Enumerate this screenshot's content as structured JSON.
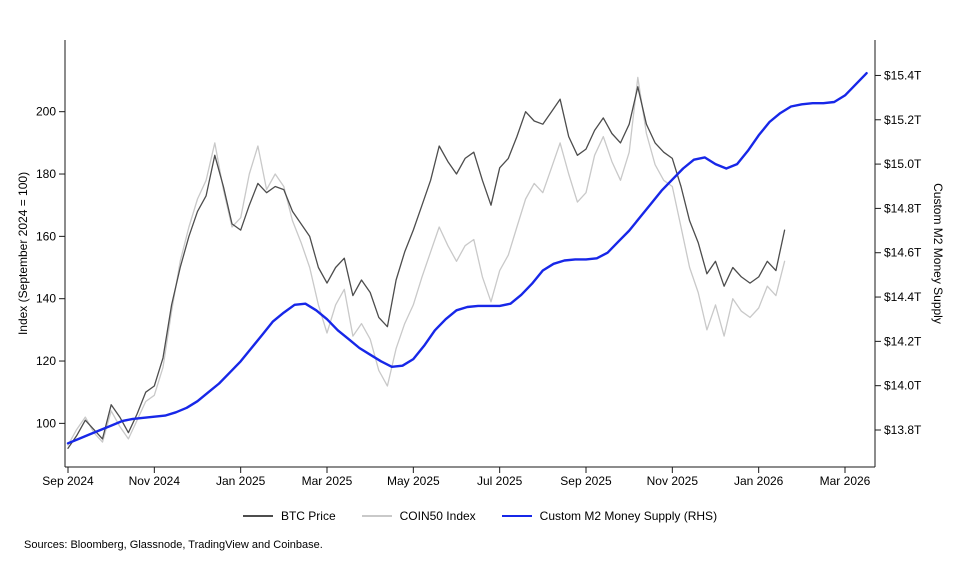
{
  "source_note": "Sources: Bloomberg, Glassnode, TradingView and Coinbase.",
  "colors": {
    "axis": "#1a1a1a",
    "text": "#000000"
  },
  "chart_data": {
    "type": "line",
    "title": "",
    "grid": false,
    "legend_position": "bottom",
    "x_axis": {
      "unit": "months since Sep 2024",
      "tick_positions": [
        0,
        2,
        4,
        6,
        8,
        10,
        12,
        14,
        16,
        18
      ],
      "tick_labels": [
        "Sep 2024",
        "Nov 2024",
        "Jan 2025",
        "Mar 2025",
        "May 2025",
        "Jul 2025",
        "Sep 2025",
        "Nov 2025",
        "Jan 2026",
        "Mar 2026"
      ],
      "range": [
        -0.1,
        18.7
      ]
    },
    "left_axis": {
      "label": "Index (September 2024 = 100)",
      "tick_values": [
        100,
        120,
        140,
        160,
        180,
        200
      ],
      "tick_labels": [
        "100",
        "120",
        "140",
        "160",
        "180",
        "200"
      ],
      "range": [
        86,
        223
      ]
    },
    "right_axis": {
      "label": "Custom M2 Money Supply",
      "tick_values": [
        13.8,
        14.0,
        14.2,
        14.4,
        14.6,
        14.8,
        15.0,
        15.2,
        15.4
      ],
      "tick_labels": [
        "$13.8T",
        "$14.0T",
        "$14.2T",
        "$14.4T",
        "$14.6T",
        "$14.8T",
        "$15.0T",
        "$15.2T",
        "$15.4T"
      ],
      "range": [
        13.633,
        15.56
      ]
    },
    "series": [
      {
        "id": "btc-price",
        "name": "BTC Price",
        "axis": "left",
        "color": "#4d4d4d",
        "width": 1.3,
        "start": 0,
        "step": 0.2,
        "values": [
          92,
          96,
          101,
          98,
          95,
          106,
          102,
          97,
          103,
          110,
          112,
          121,
          138,
          150,
          160,
          168,
          173,
          186,
          176,
          164,
          162,
          170,
          177,
          174,
          176,
          175,
          168,
          164,
          160,
          150,
          145,
          150,
          153,
          141,
          146,
          142,
          134,
          131,
          146,
          155,
          162,
          170,
          178,
          189,
          184,
          180,
          185,
          187,
          178,
          170,
          182,
          185,
          192,
          200,
          197,
          196,
          200,
          204,
          192,
          186,
          188,
          194,
          198,
          193,
          190,
          196,
          208,
          196,
          190,
          187,
          185,
          176,
          165,
          158,
          148,
          152,
          144,
          150,
          147,
          145,
          147,
          152,
          149,
          162
        ]
      },
      {
        "id": "coin50-index",
        "name": "COIN50 Index",
        "axis": "left",
        "color": "#c9c9c9",
        "width": 1.3,
        "start": 0,
        "step": 0.2,
        "values": [
          93,
          98,
          102,
          97,
          94,
          104,
          99,
          95,
          101,
          107,
          109,
          118,
          136,
          152,
          163,
          172,
          178,
          190,
          175,
          163,
          166,
          180,
          189,
          175,
          180,
          176,
          165,
          158,
          150,
          138,
          129,
          138,
          143,
          128,
          132,
          127,
          117,
          112,
          124,
          132,
          138,
          147,
          155,
          163,
          157,
          152,
          157,
          159,
          147,
          139,
          149,
          154,
          163,
          172,
          177,
          174,
          182,
          190,
          180,
          171,
          174,
          186,
          192,
          184,
          178,
          187,
          211,
          193,
          183,
          178,
          176,
          163,
          150,
          142,
          130,
          138,
          128,
          140,
          136,
          134,
          137,
          144,
          141,
          152
        ]
      },
      {
        "id": "m2-money-supply",
        "name": "Custom M2 Money Supply (RHS)",
        "axis": "right",
        "color": "#1727e8",
        "width": 2.4,
        "start": 0,
        "step": 0.25,
        "values": [
          13.74,
          13.76,
          13.78,
          13.8,
          13.82,
          13.84,
          13.85,
          13.855,
          13.86,
          13.865,
          13.88,
          13.9,
          13.93,
          13.97,
          14.01,
          14.06,
          14.11,
          14.17,
          14.23,
          14.29,
          14.33,
          14.365,
          14.37,
          14.34,
          14.3,
          14.25,
          14.21,
          14.17,
          14.14,
          14.11,
          14.085,
          14.09,
          14.12,
          14.18,
          14.25,
          14.3,
          14.34,
          14.355,
          14.36,
          14.36,
          14.36,
          14.37,
          14.41,
          14.46,
          14.52,
          14.55,
          14.565,
          14.57,
          14.57,
          14.575,
          14.6,
          14.65,
          14.7,
          14.76,
          14.82,
          14.88,
          14.93,
          14.98,
          15.02,
          15.03,
          15.0,
          14.98,
          15.0,
          15.06,
          15.13,
          15.19,
          15.23,
          15.26,
          15.27,
          15.275,
          15.275,
          15.28,
          15.31,
          15.36,
          15.41
        ]
      }
    ]
  }
}
